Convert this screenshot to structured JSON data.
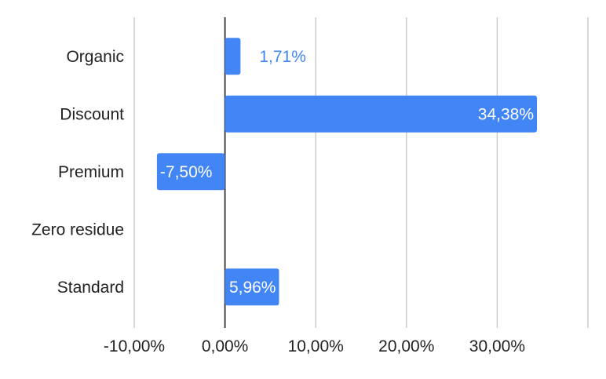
{
  "chart_data": {
    "type": "bar",
    "orientation": "horizontal",
    "categories": [
      "Organic",
      "Discount",
      "Premium",
      "Zero residue",
      "Standard"
    ],
    "values": [
      1.71,
      34.38,
      -7.5,
      null,
      5.96
    ],
    "data_labels": [
      "1,71%",
      "34,38%",
      "-7,50%",
      "",
      "5,96%"
    ],
    "xlim": [
      -10,
      40
    ],
    "x_ticks": [
      -10,
      0,
      10,
      20,
      30,
      40
    ],
    "x_tick_labels": [
      "-10,00%",
      "0,00%",
      "10,00%",
      "20,00%",
      "30,00%",
      ""
    ],
    "title": "",
    "xlabel": "",
    "ylabel": "",
    "grid": true,
    "legend": "none",
    "colors": {
      "bar": "#4285f4",
      "label_inside": "#ffffff",
      "label_outside": "#4285f4",
      "gridline": "#cccccc",
      "zero_line": "#333333",
      "axis_text": "#222222"
    }
  }
}
